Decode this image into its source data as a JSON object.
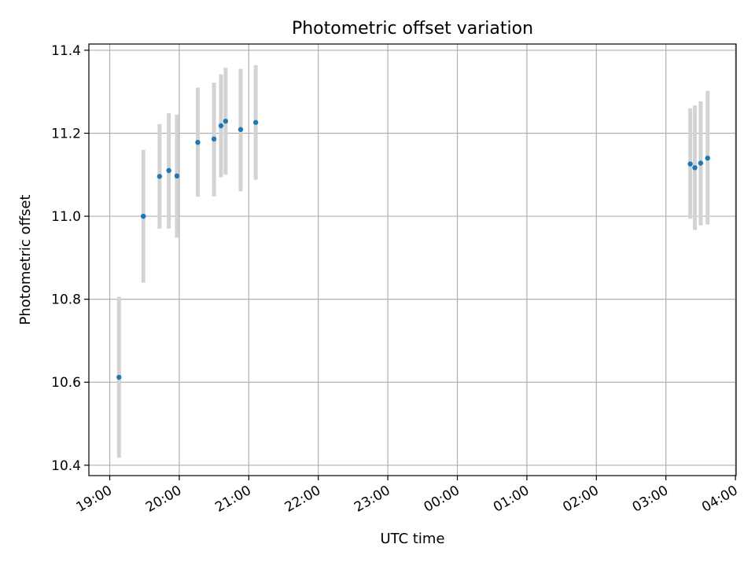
{
  "chart_data": {
    "type": "scatter",
    "title": "Photometric offset variation",
    "xlabel": "UTC time",
    "ylabel": "Photometric offset",
    "grid": true,
    "xaxis": "time",
    "xlim": [
      "19:00",
      "04:00"
    ],
    "ylim": [
      10.375,
      11.415
    ],
    "xticks": [
      "19:00",
      "20:00",
      "21:00",
      "22:00",
      "23:00",
      "00:00",
      "01:00",
      "02:00",
      "03:00",
      "04:00"
    ],
    "yticks": [
      "10.4",
      "10.6",
      "10.8",
      "11.0",
      "11.2",
      "11.4"
    ],
    "point_color": "#1f77b4",
    "errorbar_color": "#d3d3d3",
    "series": [
      {
        "points": [
          {
            "x": "19:08",
            "y": 10.612,
            "ylo": 10.418,
            "yhi": 10.806
          },
          {
            "x": "19:29",
            "y": 11.0,
            "ylo": 10.84,
            "yhi": 11.16
          },
          {
            "x": "19:43",
            "y": 11.096,
            "ylo": 10.97,
            "yhi": 11.222
          },
          {
            "x": "19:51",
            "y": 11.11,
            "ylo": 10.97,
            "yhi": 11.248
          },
          {
            "x": "19:58",
            "y": 11.097,
            "ylo": 10.948,
            "yhi": 11.245
          },
          {
            "x": "20:16",
            "y": 11.178,
            "ylo": 11.047,
            "yhi": 11.31
          },
          {
            "x": "20:30",
            "y": 11.186,
            "ylo": 11.048,
            "yhi": 11.322
          },
          {
            "x": "20:36",
            "y": 11.218,
            "ylo": 11.094,
            "yhi": 11.342
          },
          {
            "x": "20:40",
            "y": 11.229,
            "ylo": 11.1,
            "yhi": 11.358
          },
          {
            "x": "20:53",
            "y": 11.209,
            "ylo": 11.06,
            "yhi": 11.355
          },
          {
            "x": "21:06",
            "y": 11.226,
            "ylo": 11.088,
            "yhi": 11.364
          },
          {
            "x": "03:21",
            "y": 11.126,
            "ylo": 10.994,
            "yhi": 11.26
          },
          {
            "x": "03:25",
            "y": 11.117,
            "ylo": 10.967,
            "yhi": 11.267
          },
          {
            "x": "03:30",
            "y": 11.128,
            "ylo": 10.978,
            "yhi": 11.277
          },
          {
            "x": "03:36",
            "y": 11.14,
            "ylo": 10.98,
            "yhi": 11.302
          }
        ]
      }
    ]
  }
}
